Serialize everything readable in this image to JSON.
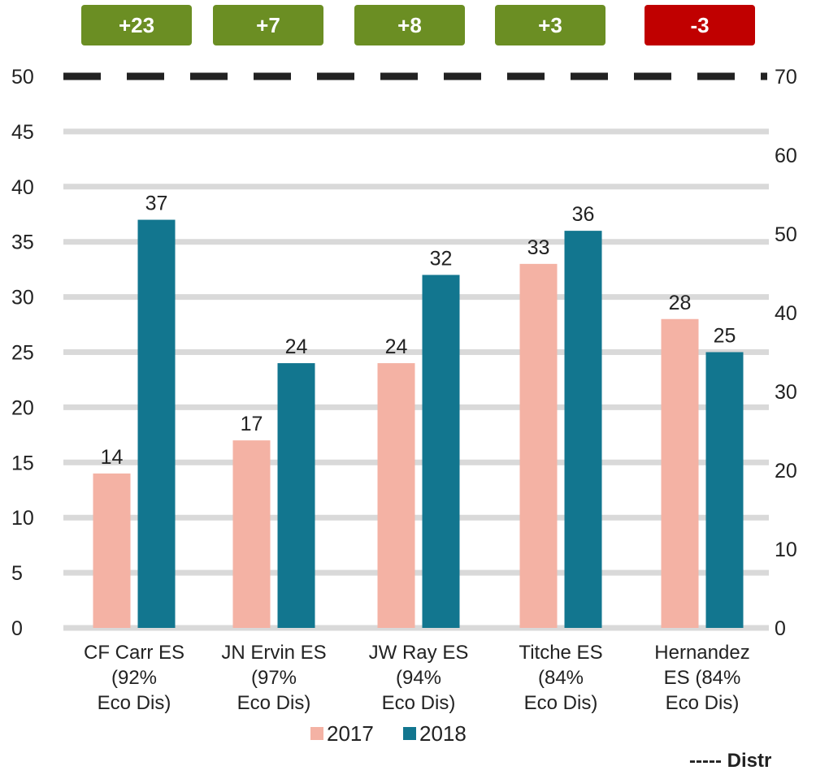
{
  "chart_data": {
    "type": "bar",
    "categories": [
      [
        "CF Carr ES",
        "(92%",
        "Eco Dis)"
      ],
      [
        "JN Ervin ES",
        "(97%",
        "Eco Dis)"
      ],
      [
        "JW Ray ES",
        "(94%",
        "Eco Dis)"
      ],
      [
        "Titche ES",
        "(84%",
        "Eco Dis)"
      ],
      [
        "Hernandez",
        "ES (84%",
        "Eco Dis)"
      ]
    ],
    "series": [
      {
        "name": "2017",
        "values": [
          14,
          17,
          24,
          33,
          28
        ],
        "color": "#f4b2a4"
      },
      {
        "name": "2018",
        "values": [
          37,
          24,
          32,
          36,
          25
        ],
        "color": "#12768f"
      }
    ],
    "changes": [
      {
        "label": "+23",
        "color": "#6b8e23"
      },
      {
        "label": "+7",
        "color": "#6b8e23"
      },
      {
        "label": "+8",
        "color": "#6b8e23"
      },
      {
        "label": "+3",
        "color": "#6b8e23"
      },
      {
        "label": "-3",
        "color": "#c00000"
      }
    ],
    "ylim": [
      0,
      50
    ],
    "yticks": [
      0,
      5,
      10,
      15,
      20,
      25,
      30,
      35,
      40,
      45,
      50
    ],
    "y2lim": [
      0,
      70
    ],
    "y2ticks": [
      0,
      10,
      20,
      30,
      40,
      50,
      60,
      70
    ],
    "reference_line": {
      "y2_value": 70,
      "style": "dashed",
      "color": "#222222"
    },
    "footnote": "----- Distr",
    "grid": true,
    "legend_position": "bottom"
  }
}
